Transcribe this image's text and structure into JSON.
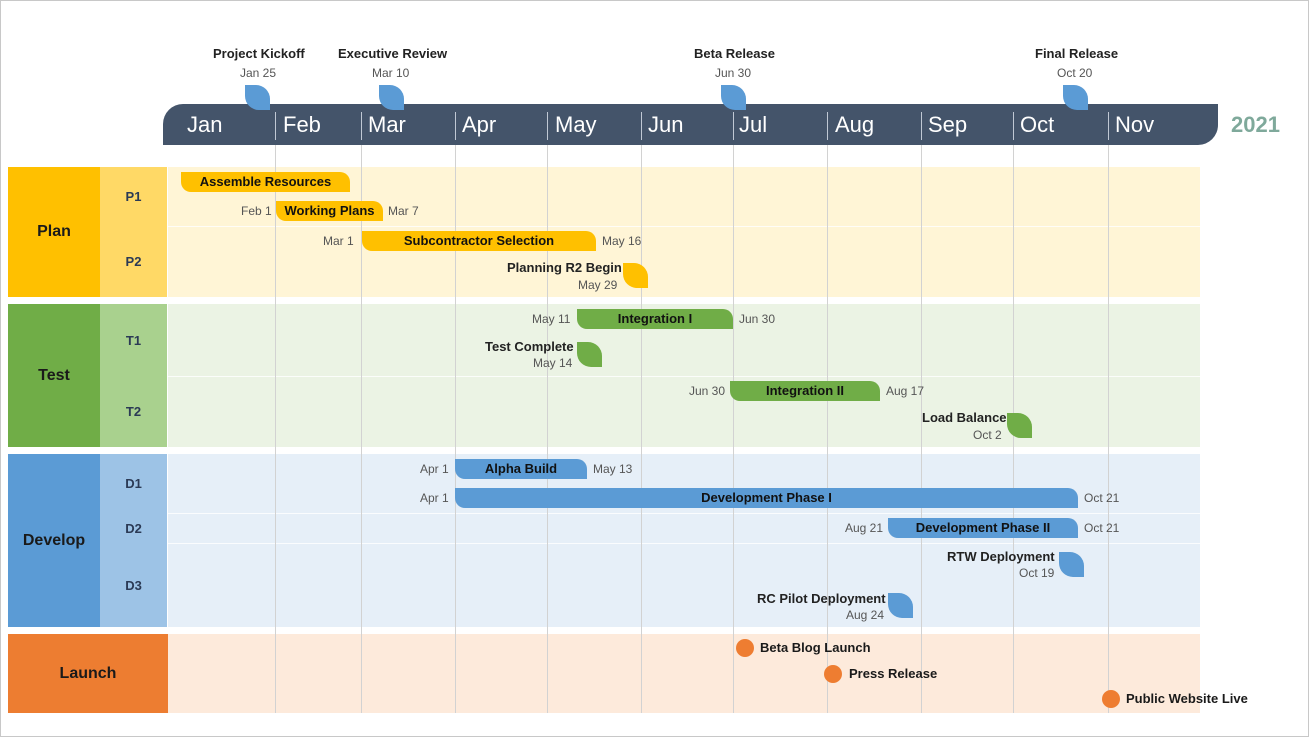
{
  "year": "2021",
  "months": [
    "Jan",
    "Feb",
    "Mar",
    "Apr",
    "May",
    "Jun",
    "Jul",
    "Aug",
    "Sep",
    "Oct",
    "Nov"
  ],
  "top_milestones": [
    {
      "label": "Project Kickoff",
      "date": "Jan 25"
    },
    {
      "label": "Executive Review",
      "date": "Mar 10"
    },
    {
      "label": "Beta Release",
      "date": "Jun 30"
    },
    {
      "label": "Final Release",
      "date": "Oct 20"
    }
  ],
  "groups": [
    {
      "name": "Plan",
      "subs": [
        "P1",
        "P2"
      ]
    },
    {
      "name": "Test",
      "subs": [
        "T1",
        "T2"
      ]
    },
    {
      "name": "Develop",
      "subs": [
        "D1",
        "D2",
        "D3"
      ]
    },
    {
      "name": "Launch",
      "subs": []
    }
  ],
  "tasks": [
    {
      "name": "Assemble Resources",
      "start": "",
      "end": ""
    },
    {
      "name": "Working Plans",
      "start": "Feb 1",
      "end": "Mar 7"
    },
    {
      "name": "Subcontractor Selection",
      "start": "Mar 1",
      "end": "May 16"
    },
    {
      "name": "Integration I",
      "start": "May 11",
      "end": "Jun 30"
    },
    {
      "name": "Integration II",
      "start": "Jun 30",
      "end": "Aug 17"
    },
    {
      "name": "Alpha Build",
      "start": "Apr 1",
      "end": "May 13"
    },
    {
      "name": "Development Phase I",
      "start": "Apr 1",
      "end": "Oct 21"
    },
    {
      "name": "Development Phase II",
      "start": "Aug 21",
      "end": "Oct 21"
    }
  ],
  "milestones": [
    {
      "label": "Planning R2 Begin",
      "date": "May 29"
    },
    {
      "label": "Test Complete",
      "date": "May 14"
    },
    {
      "label": "Load Balance",
      "date": "Oct 2"
    },
    {
      "label": "RTW Deployment",
      "date": "Oct 19"
    },
    {
      "label": "RC Pilot Deployment",
      "date": "Aug 24"
    }
  ],
  "launch_events": [
    "Beta Blog Launch",
    "Press Release",
    "Public Website Live"
  ],
  "colors": {
    "plan": "#ffc000",
    "plan_sub": "#ffd966",
    "plan_band": "#fff5d6",
    "test": "#70ad47",
    "test_sub": "#a9d18e",
    "test_band": "#ebf3e4",
    "develop": "#5b9bd5",
    "develop_sub": "#9dc3e6",
    "develop_band": "#e6eff8",
    "launch": "#ed7d31",
    "launch_band": "#fdeadb",
    "timeline": "#44546a",
    "year": "#7fa99b"
  }
}
